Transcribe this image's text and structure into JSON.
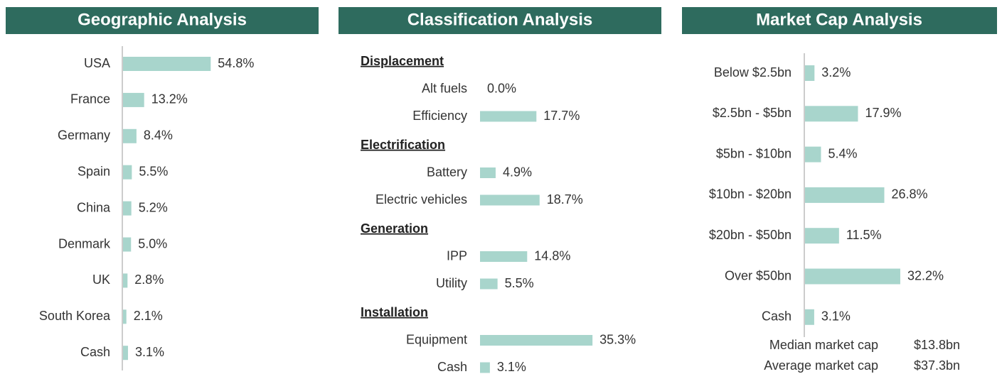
{
  "chart_data": [
    {
      "type": "bar",
      "orientation": "horizontal",
      "title": "Geographic Analysis",
      "color": "#a8d5cc",
      "categories": [
        "USA",
        "France",
        "Germany",
        "Spain",
        "China",
        "Denmark",
        "UK",
        "South Korea",
        "Cash"
      ],
      "values": [
        54.8,
        13.2,
        8.4,
        5.5,
        5.2,
        5.0,
        2.8,
        2.1,
        3.1
      ],
      "value_labels": [
        "54.8%",
        "13.2%",
        "8.4%",
        "5.5%",
        "5.2%",
        "5.0%",
        "2.8%",
        "2.1%",
        "3.1%"
      ]
    },
    {
      "type": "grouped_bar",
      "orientation": "horizontal",
      "title": "Classification Analysis",
      "color": "#a8d5cc",
      "groups": [
        {
          "name": "Displacement",
          "categories": [
            "Alt fuels",
            "Efficiency"
          ],
          "values": [
            0.0,
            17.7
          ],
          "value_labels": [
            "0.0%",
            "17.7%"
          ]
        },
        {
          "name": "Electrification",
          "categories": [
            "Battery",
            "Electric vehicles"
          ],
          "values": [
            4.9,
            18.7
          ],
          "value_labels": [
            "4.9%",
            "18.7%"
          ]
        },
        {
          "name": "Generation",
          "categories": [
            "IPP",
            "Utility"
          ],
          "values": [
            14.8,
            5.5
          ],
          "value_labels": [
            "14.8%",
            "5.5%"
          ]
        },
        {
          "name": "Installation",
          "categories": [
            "Equipment",
            "Cash"
          ],
          "values": [
            35.3,
            3.1
          ],
          "value_labels": [
            "35.3%",
            "3.1%"
          ]
        }
      ]
    },
    {
      "type": "bar",
      "orientation": "horizontal",
      "title": "Market Cap Analysis",
      "color": "#a8d5cc",
      "categories": [
        "Below $2.5bn",
        "$2.5bn - $5bn",
        "$5bn - $10bn",
        "$10bn - $20bn",
        "$20bn - $50bn",
        "Over $50bn",
        "Cash"
      ],
      "values": [
        3.2,
        17.9,
        5.4,
        26.8,
        11.5,
        32.2,
        3.1
      ],
      "value_labels": [
        "3.2%",
        "17.9%",
        "5.4%",
        "26.8%",
        "11.5%",
        "32.2%",
        "3.1%"
      ],
      "notes": [
        {
          "label": "Median market cap",
          "value": "$13.8bn"
        },
        {
          "label": "Average market cap",
          "value": "$37.3bn"
        }
      ]
    }
  ]
}
